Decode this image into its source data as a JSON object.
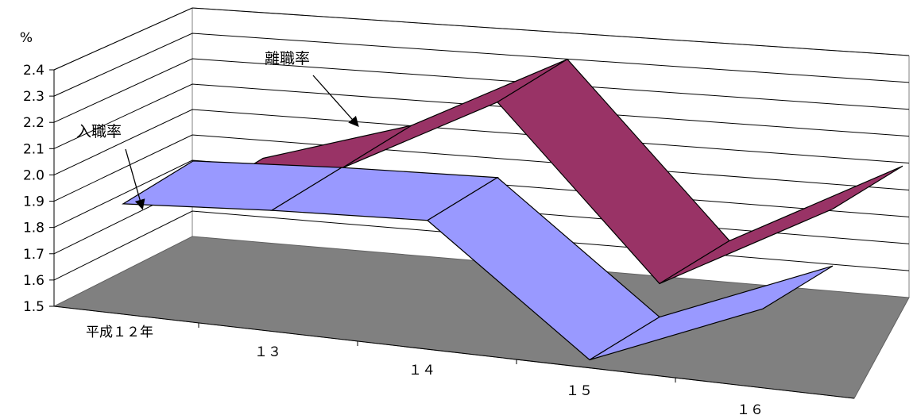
{
  "chart_data": {
    "type": "line",
    "style": "3d-ribbon",
    "y_unit": "%",
    "ylim": [
      1.5,
      2.4
    ],
    "yticks": [
      "1.5",
      "1.6",
      "1.7",
      "1.8",
      "1.9",
      "2.0",
      "2.1",
      "2.2",
      "2.3",
      "2.4"
    ],
    "categories": [
      "平成１２年",
      "１３",
      "１４",
      "１５",
      "１６"
    ],
    "series": [
      {
        "name": "入職率",
        "values": [
          1.89,
          1.93,
          1.96,
          1.5,
          1.77
        ],
        "color": "#9999ff"
      },
      {
        "name": "離職率",
        "values": [
          1.87,
          2.06,
          2.38,
          1.76,
          2.12
        ],
        "color": "#993366"
      }
    ],
    "floor_color": "#808080",
    "gridlines": true
  }
}
